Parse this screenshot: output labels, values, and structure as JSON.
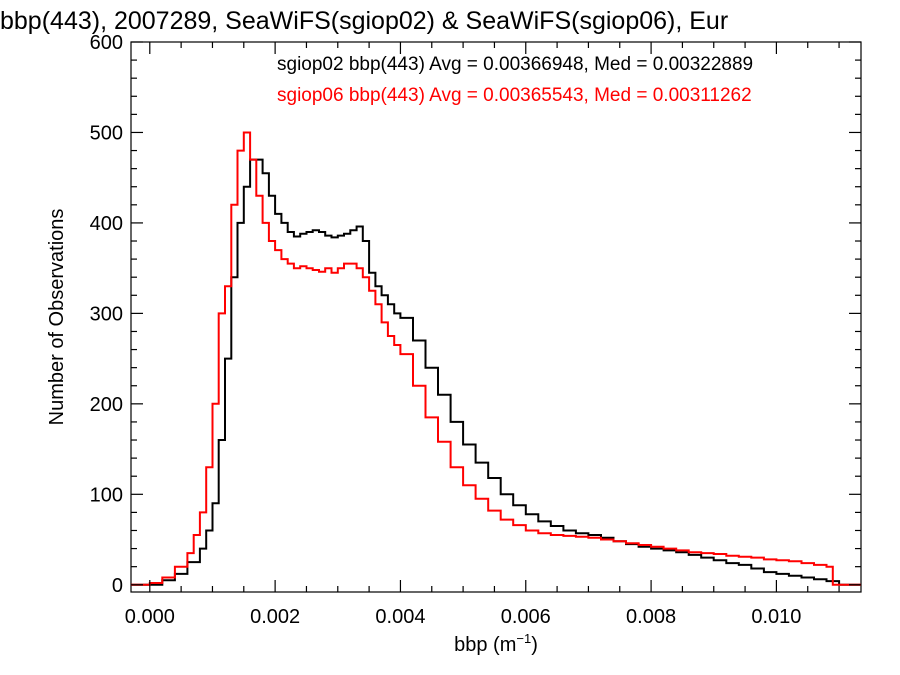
{
  "chart_data": {
    "type": "line",
    "title": "bbp(443), 2007289, SeaWiFS(sgiop02) & SeaWiFS(sgiop06), Eur",
    "xlabel": "bbp (m",
    "xlabel_sup": "−1",
    "xlabel_close": ")",
    "ylabel": "Number of Observations",
    "xlim": [
      -0.0003,
      0.01135
    ],
    "ylim": [
      -8,
      600
    ],
    "x_ticks": [
      0.0,
      0.002,
      0.004,
      0.006,
      0.008,
      0.01
    ],
    "x_tick_labels": [
      "0.000",
      "0.002",
      "0.004",
      "0.006",
      "0.008",
      "0.010"
    ],
    "y_ticks": [
      0,
      100,
      200,
      300,
      400,
      500,
      600
    ],
    "y_tick_labels": [
      "0",
      "100",
      "200",
      "300",
      "400",
      "500",
      "600"
    ],
    "grid": false,
    "legend_position": "top-right",
    "annotations": [
      {
        "text": "sgiop02 bbp(443) Avg = 0.00366948, Med = 0.00322889",
        "color": "#000000"
      },
      {
        "text": "sgiop06 bbp(443) Avg = 0.00365543, Med = 0.00311262",
        "color": "#ff0000"
      }
    ],
    "series": [
      {
        "color": "#000000",
        "x": [
          -0.0003,
          0.0,
          0.0002,
          0.0004,
          0.0006,
          0.0008,
          0.0009,
          0.001,
          0.0011,
          0.0012,
          0.0013,
          0.0014,
          0.0015,
          0.0016,
          0.0017,
          0.0018,
          0.0019,
          0.002,
          0.0021,
          0.0022,
          0.0023,
          0.0024,
          0.0025,
          0.0026,
          0.0027,
          0.0028,
          0.0029,
          0.003,
          0.0031,
          0.0032,
          0.0033,
          0.0034,
          0.0035,
          0.0036,
          0.0037,
          0.0038,
          0.0039,
          0.004,
          0.0042,
          0.0044,
          0.0046,
          0.0048,
          0.005,
          0.0052,
          0.0054,
          0.0056,
          0.0058,
          0.006,
          0.0062,
          0.0064,
          0.0066,
          0.0068,
          0.007,
          0.0072,
          0.0074,
          0.0076,
          0.0078,
          0.008,
          0.0082,
          0.0084,
          0.0086,
          0.0088,
          0.009,
          0.0092,
          0.0094,
          0.0096,
          0.0098,
          0.01,
          0.0102,
          0.0104,
          0.0106,
          0.0108,
          0.011,
          0.01135
        ],
        "y": [
          0,
          0,
          5,
          12,
          25,
          40,
          60,
          90,
          160,
          250,
          340,
          400,
          440,
          470,
          470,
          455,
          430,
          410,
          400,
          390,
          385,
          388,
          390,
          392,
          390,
          386,
          384,
          386,
          388,
          392,
          396,
          380,
          345,
          330,
          320,
          310,
          300,
          295,
          270,
          240,
          210,
          180,
          155,
          135,
          118,
          100,
          88,
          78,
          70,
          65,
          60,
          57,
          55,
          52,
          48,
          45,
          42,
          40,
          38,
          36,
          33,
          30,
          27,
          24,
          22,
          18,
          14,
          12,
          10,
          8,
          6,
          4,
          0,
          0
        ]
      },
      {
        "color": "#ff0000",
        "x": [
          -0.0003,
          0.0,
          0.0002,
          0.0004,
          0.0006,
          0.0007,
          0.0008,
          0.0009,
          0.001,
          0.0011,
          0.0012,
          0.0013,
          0.0014,
          0.0015,
          0.0016,
          0.0017,
          0.0018,
          0.0019,
          0.002,
          0.0021,
          0.0022,
          0.0023,
          0.0024,
          0.0025,
          0.0026,
          0.0027,
          0.0028,
          0.0029,
          0.003,
          0.0031,
          0.0032,
          0.0033,
          0.0034,
          0.0035,
          0.0036,
          0.0037,
          0.0038,
          0.0039,
          0.004,
          0.0042,
          0.0044,
          0.0046,
          0.0048,
          0.005,
          0.0052,
          0.0054,
          0.0056,
          0.0058,
          0.006,
          0.0062,
          0.0064,
          0.0066,
          0.0068,
          0.007,
          0.0072,
          0.0074,
          0.0076,
          0.0078,
          0.008,
          0.0082,
          0.0084,
          0.0086,
          0.0088,
          0.009,
          0.0092,
          0.0094,
          0.0096,
          0.0098,
          0.01,
          0.0102,
          0.0104,
          0.0106,
          0.0108,
          0.0109,
          0.01135
        ],
        "y": [
          0,
          2,
          8,
          20,
          35,
          55,
          80,
          130,
          200,
          300,
          330,
          420,
          480,
          500,
          470,
          430,
          400,
          380,
          370,
          360,
          355,
          350,
          352,
          350,
          348,
          346,
          350,
          345,
          350,
          355,
          355,
          350,
          340,
          325,
          310,
          290,
          275,
          265,
          255,
          220,
          185,
          158,
          130,
          110,
          95,
          82,
          72,
          66,
          60,
          57,
          55,
          54,
          53,
          52,
          50,
          48,
          46,
          44,
          42,
          40,
          38,
          36,
          35,
          34,
          32,
          31,
          30,
          28,
          27,
          26,
          24,
          22,
          20,
          0,
          0
        ]
      }
    ]
  }
}
